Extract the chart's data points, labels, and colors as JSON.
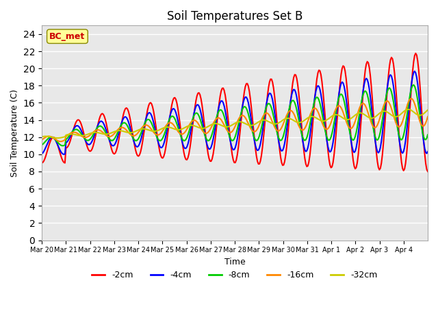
{
  "title": "Soil Temperatures Set B",
  "xlabel": "Time",
  "ylabel": "Soil Temperature (C)",
  "station_label": "BC_met",
  "ylim": [
    0,
    25
  ],
  "yticks": [
    0,
    2,
    4,
    6,
    8,
    10,
    12,
    14,
    16,
    18,
    20,
    22,
    24
  ],
  "bg_color": "#e8e8e8",
  "fig_color": "#ffffff",
  "grid_color": "#ffffff",
  "line_colors": {
    "-2cm": "#ff0000",
    "-4cm": "#0000ff",
    "-8cm": "#00cc00",
    "-16cm": "#ff8800",
    "-32cm": "#cccc00"
  },
  "xtick_labels": [
    "Mar 20",
    "Mar 21",
    "Mar 22",
    "Mar 23",
    "Mar 24",
    "Mar 25",
    "Mar 26",
    "Mar 27",
    "Mar 28",
    "Mar 29",
    "Mar 30",
    "Mar 31",
    "Apr 1",
    "Apr 2",
    "Apr 3",
    "Apr 4"
  ],
  "num_days": 16
}
